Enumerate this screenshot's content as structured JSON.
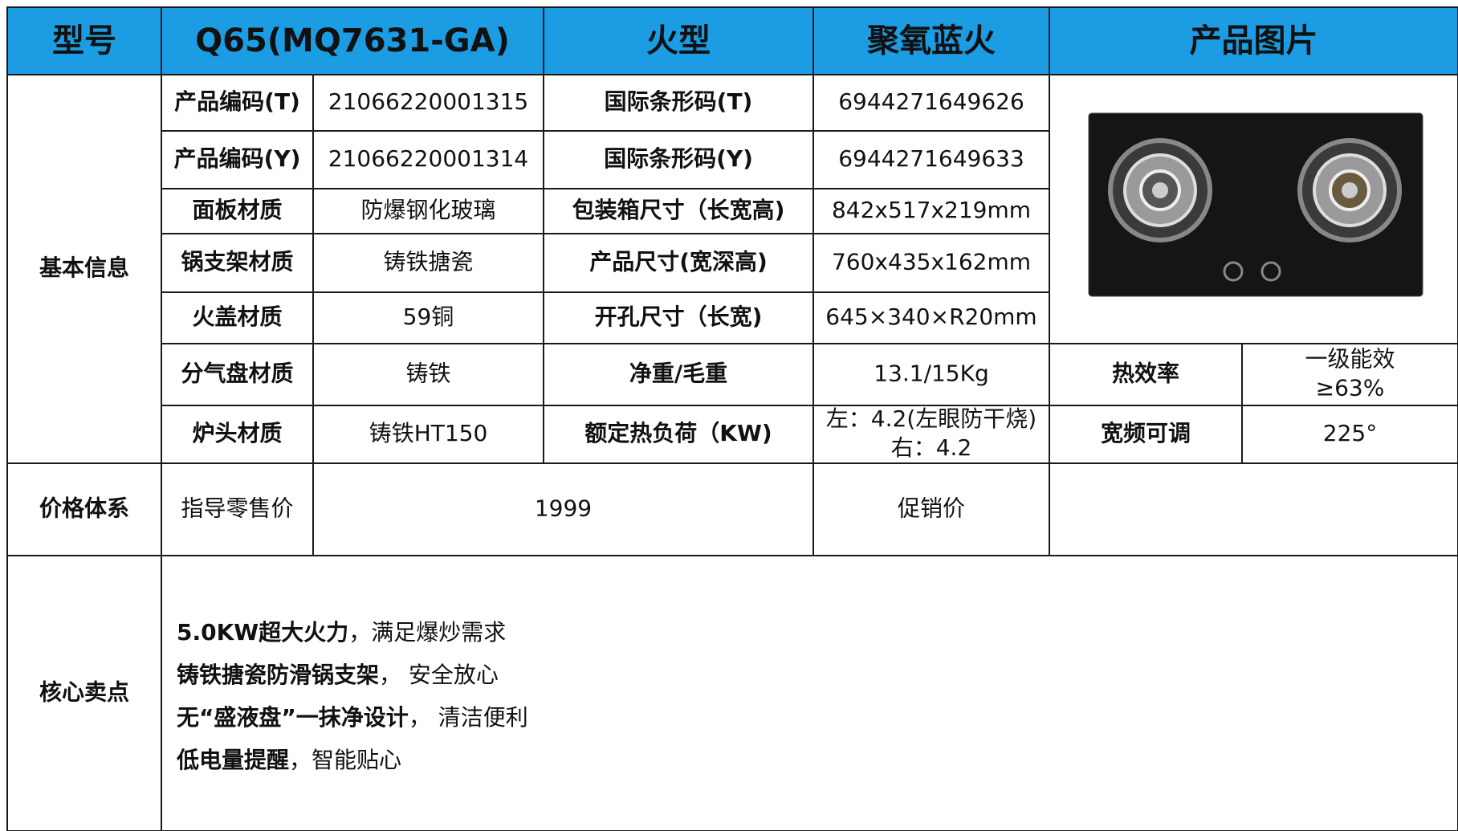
{
  "header": [
    "型号",
    "Q65(MQ7631-GA)",
    "火型",
    "聚氧蓝火",
    "产品图片"
  ],
  "basic_info": {
    "label": "基本信息",
    "rows": [
      [
        "产品编码(T)",
        "21066220001315",
        "国际条形码(T)",
        "6944271649626"
      ],
      [
        "产品编码(Y)",
        "21066220001314",
        "国际条形码(Y)",
        "6944271649633"
      ],
      [
        "面板材质",
        "防爆钢化玻璃",
        "包装箱尺寸（长宽高)",
        "842x517x219mm"
      ],
      [
        "锅支架材质",
        "铸铁搪瓷",
        "产品尺寸(宽深高)",
        "760x435x162mm"
      ],
      [
        "火盖材质",
        "59铜",
        "开孔尺寸（长宽)",
        "645×340×R20mm"
      ],
      [
        "分气盘材质",
        "铸铁",
        "净重/毛重",
        "13.1/15Kg",
        "热效率",
        [
          "一级能效",
          "≥63%"
        ]
      ],
      [
        "炉头材质",
        "铸铁HT150",
        "额定热负荷（KW)",
        [
          "左：4.2(左眼防干烧)",
          "右：4.2"
        ],
        "宽频可调",
        "225°"
      ]
    ]
  },
  "price": {
    "label": "价格体系",
    "cells": [
      "指导零售价",
      "1999",
      "促销价"
    ]
  },
  "selling_points": {
    "label": "核心卖点",
    "items": [
      {
        "bold": "5.0KW超大火力",
        "text": "，满足爆炒需求"
      },
      {
        "bold": "铸铁搪瓷防滑锅支架",
        "text": "， 安全放心"
      },
      {
        "bold": "无“盛液盘”一抹净设计",
        "text": "， 清洁便利"
      },
      {
        "bold": "低电量提醒",
        "text": "，智能贴心"
      }
    ]
  }
}
